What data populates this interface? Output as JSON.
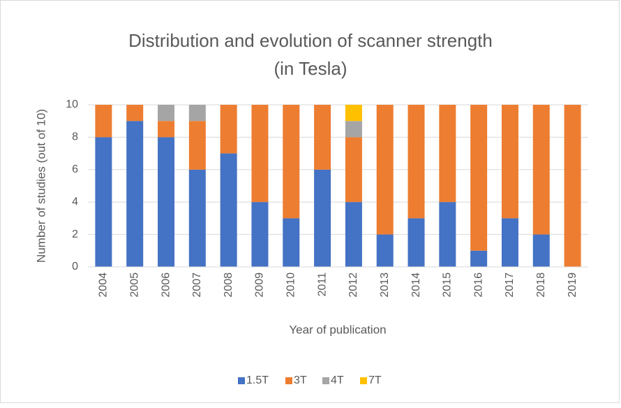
{
  "chart_data": {
    "type": "stacked_bar",
    "title": [
      "Distribution and evolution of scanner strength",
      "(in Tesla)"
    ],
    "x_label": "Year of publication",
    "y_label": "Number of studies (out of 10)",
    "categories": [
      "2004",
      "2005",
      "2006",
      "2007",
      "2008",
      "2009",
      "2010",
      "2011",
      "2012",
      "2013",
      "2014",
      "2015",
      "2016",
      "2017",
      "2018",
      "2019"
    ],
    "series": [
      {
        "name": "1.5T",
        "color": "#4472c4",
        "values": [
          8,
          9,
          8,
          6,
          7,
          4,
          3,
          6,
          4,
          2,
          3,
          4,
          1,
          3,
          2,
          0
        ]
      },
      {
        "name": "3T",
        "color": "#ed7d31",
        "values": [
          2,
          1,
          1,
          3,
          3,
          6,
          7,
          4,
          4,
          8,
          7,
          6,
          9,
          7,
          8,
          10
        ]
      },
      {
        "name": "4T",
        "color": "#a5a5a5",
        "values": [
          0,
          0,
          1,
          1,
          0,
          0,
          0,
          0,
          1,
          0,
          0,
          0,
          0,
          0,
          0,
          0
        ]
      },
      {
        "name": "7T",
        "color": "#ffc000",
        "values": [
          0,
          0,
          0,
          0,
          0,
          0,
          0,
          0,
          1,
          0,
          0,
          0,
          0,
          0,
          0,
          0
        ]
      }
    ],
    "ylim": [
      0,
      10
    ],
    "yticks": [
      0,
      2,
      4,
      6,
      8,
      10
    ],
    "grid": true,
    "legend": "bottom"
  }
}
